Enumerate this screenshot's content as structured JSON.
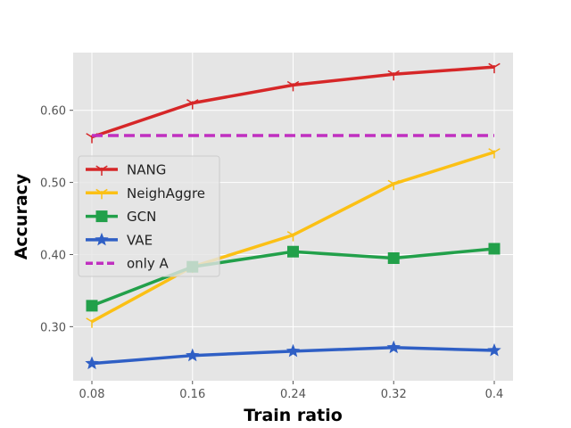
{
  "chart_data": {
    "type": "line",
    "title": "",
    "xlabel": "Train ratio",
    "ylabel": "Accuracy",
    "x": [
      "0.08",
      "0.16",
      "0.24",
      "0.32",
      "0.4"
    ],
    "xlim": [
      0.08,
      0.4
    ],
    "ylim": [
      0.225,
      0.68
    ],
    "yticks": [
      "0.30",
      "0.40",
      "0.50",
      "0.60"
    ],
    "ytick_values": [
      0.3,
      0.4,
      0.5,
      0.6
    ],
    "grid": true,
    "legend_position": "center-left",
    "background": "#e5e5e5",
    "series": [
      {
        "name": "NANG",
        "color": "#d62728",
        "marker": "tri-cross",
        "linestyle": "solid",
        "values": [
          0.563,
          0.61,
          0.635,
          0.65,
          0.66
        ]
      },
      {
        "name": "NeighAggre",
        "color": "#fbc015",
        "marker": "tri-cross",
        "linestyle": "solid",
        "values": [
          0.307,
          0.383,
          0.427,
          0.498,
          0.542
        ]
      },
      {
        "name": "GCN",
        "color": "#22a04a",
        "marker": "square",
        "linestyle": "solid",
        "values": [
          0.329,
          0.383,
          0.404,
          0.395,
          0.408
        ]
      },
      {
        "name": "VAE",
        "color": "#2f5fc5",
        "marker": "star",
        "linestyle": "solid",
        "values": [
          0.249,
          0.26,
          0.266,
          0.271,
          0.267
        ]
      },
      {
        "name": "only A",
        "color": "#c030c0",
        "marker": "none",
        "linestyle": "dashed",
        "values": [
          0.565,
          0.565,
          0.565,
          0.565,
          0.565
        ]
      }
    ]
  }
}
